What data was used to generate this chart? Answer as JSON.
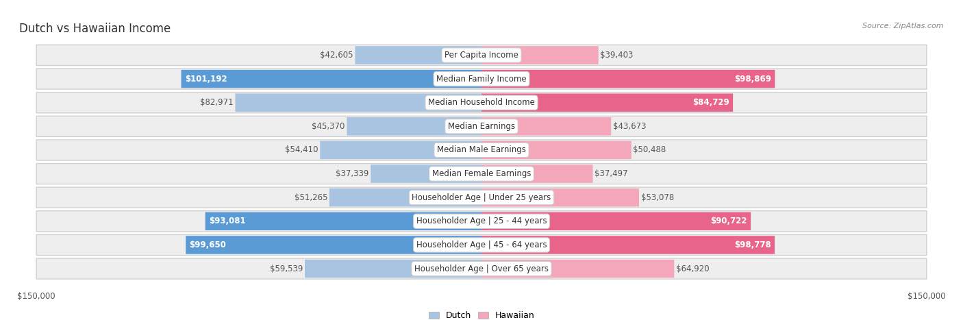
{
  "title": "Dutch vs Hawaiian Income",
  "source": "Source: ZipAtlas.com",
  "categories": [
    "Per Capita Income",
    "Median Family Income",
    "Median Household Income",
    "Median Earnings",
    "Median Male Earnings",
    "Median Female Earnings",
    "Householder Age | Under 25 years",
    "Householder Age | 25 - 44 years",
    "Householder Age | 45 - 64 years",
    "Householder Age | Over 65 years"
  ],
  "dutch_values": [
    42605,
    101192,
    82971,
    45370,
    54410,
    37339,
    51265,
    93081,
    99650,
    59539
  ],
  "hawaiian_values": [
    39403,
    98869,
    84729,
    43673,
    50488,
    37497,
    53078,
    90722,
    98778,
    64920
  ],
  "dutch_labels": [
    "$42,605",
    "$101,192",
    "$82,971",
    "$45,370",
    "$54,410",
    "$37,339",
    "$51,265",
    "$93,081",
    "$99,650",
    "$59,539"
  ],
  "hawaiian_labels": [
    "$39,403",
    "$98,869",
    "$84,729",
    "$43,673",
    "$50,488",
    "$37,497",
    "$53,078",
    "$90,722",
    "$98,778",
    "$64,920"
  ],
  "dutch_color_light": "#a8c4e0",
  "dutch_color_dark": "#5b9bd5",
  "hawaiian_color_light": "#f4a7bb",
  "hawaiian_color_dark": "#e8648a",
  "dutch_dark_indices": [
    1,
    7,
    8
  ],
  "hawaiian_dark_indices": [
    1,
    2,
    7,
    8
  ],
  "max_value": 150000,
  "bg_color": "#ffffff",
  "row_bg": "#eeeeee",
  "label_fontsize": 8.5,
  "title_fontsize": 12,
  "legend_fontsize": 9,
  "source_fontsize": 8
}
